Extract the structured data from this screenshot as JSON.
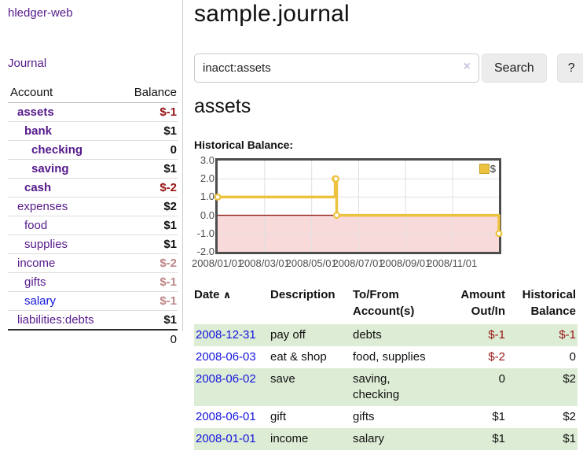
{
  "colors": {
    "link_visited": "#551a8b",
    "link_unvisited": "#1414dd",
    "negative_strong": "#971414",
    "negative_dim": "#bd8686",
    "row_green": "#ddecd5",
    "chart_line": "#edc240",
    "chart_negative_fill": "#f9dada",
    "chart_zero_line": "#8b1a1a"
  },
  "sidebar": {
    "app_title": "hledger-web",
    "journal_link": "Journal",
    "accounts_table": {
      "headers": {
        "account": "Account",
        "balance": "Balance"
      },
      "rows": [
        {
          "name": "assets",
          "indent": 1,
          "bold": true,
          "link_color": "purple",
          "balance": "$-1",
          "balance_class": "neg-strong"
        },
        {
          "name": "bank",
          "indent": 2,
          "bold": true,
          "link_color": "purple",
          "balance": "$1",
          "balance_class": "pos"
        },
        {
          "name": "checking",
          "indent": 3,
          "bold": true,
          "link_color": "purple",
          "balance": "0",
          "balance_class": "pos"
        },
        {
          "name": "saving",
          "indent": 3,
          "bold": true,
          "link_color": "purple",
          "balance": "$1",
          "balance_class": "pos"
        },
        {
          "name": "cash",
          "indent": 2,
          "bold": true,
          "link_color": "purple",
          "balance": "$-2",
          "balance_class": "neg-strong"
        },
        {
          "name": "expenses",
          "indent": 1,
          "bold": false,
          "link_color": "purple",
          "balance": "$2",
          "balance_class": "pos"
        },
        {
          "name": "food",
          "indent": 2,
          "bold": false,
          "link_color": "purple",
          "balance": "$1",
          "balance_class": "pos"
        },
        {
          "name": "supplies",
          "indent": 2,
          "bold": false,
          "link_color": "purple",
          "balance": "$1",
          "balance_class": "pos"
        },
        {
          "name": "income",
          "indent": 1,
          "bold": false,
          "link_color": "purple",
          "balance": "$-2",
          "balance_class": "neg-dim"
        },
        {
          "name": "gifts",
          "indent": 2,
          "bold": false,
          "link_color": "purple",
          "balance": "$-1",
          "balance_class": "neg-dim"
        },
        {
          "name": "salary",
          "indent": 2,
          "bold": false,
          "link_color": "blue",
          "balance": "$-1",
          "balance_class": "neg-dim"
        },
        {
          "name": "liabilities:debts",
          "indent": 1,
          "bold": false,
          "link_color": "purple",
          "balance": "$1",
          "balance_class": "pos"
        }
      ],
      "total": "0"
    }
  },
  "main": {
    "title": "sample.journal",
    "search": {
      "value": "inacct:assets",
      "clear_icon": "×",
      "search_button": "Search",
      "help_button": "?"
    },
    "account_heading": "assets",
    "chart_label": "Historical Balance:"
  },
  "chart_data": {
    "type": "line",
    "title": "Historical Balance",
    "step": true,
    "series": [
      {
        "name": "$",
        "points": [
          {
            "date": "2008-01-01",
            "value": 1
          },
          {
            "date": "2008-06-01",
            "value": 2
          },
          {
            "date": "2008-06-02",
            "value": 2
          },
          {
            "date": "2008-06-03",
            "value": 0
          },
          {
            "date": "2008-12-31",
            "value": -1
          }
        ]
      }
    ],
    "ylim": [
      -2,
      3
    ],
    "yticks": [
      "3.0",
      "2.0",
      "1.0",
      "0.0",
      "-1.0",
      "-2.0"
    ],
    "xticks": [
      {
        "label": "2008/01/01",
        "date": "2008-01-01"
      },
      {
        "label": "2008/03/01",
        "date": "2008-03-01"
      },
      {
        "label": "2008/05/01",
        "date": "2008-05-01"
      },
      {
        "label": "2008/07/01",
        "date": "2008-07-01"
      },
      {
        "label": "2008/09/01",
        "date": "2008-09-01"
      },
      {
        "label": "2008/11/01",
        "date": "2008-11-01"
      }
    ],
    "x_range": {
      "start": "2008-01-01",
      "end": "2008-12-31"
    },
    "legend": {
      "label": "$",
      "position": "top-right"
    },
    "grid": true,
    "negative_region": {
      "from": 0,
      "to": -2
    }
  },
  "register_table": {
    "headers": {
      "date": "Date",
      "sort_icon": "∧",
      "description": "Description",
      "accounts": "To/From Account(s)",
      "amount": "Amount Out/In",
      "balance": "Historical Balance"
    },
    "rows": [
      {
        "date": "2008-12-31",
        "description": "pay off",
        "accounts": "debts",
        "amount": "$-1",
        "amount_class": "neg-strong",
        "balance": "$-1",
        "balance_class": "neg-strong",
        "green": true
      },
      {
        "date": "2008-06-03",
        "description": "eat & shop",
        "accounts": "food, supplies",
        "amount": "$-2",
        "amount_class": "neg-strong",
        "balance": "0",
        "balance_class": "pos",
        "green": false
      },
      {
        "date": "2008-06-02",
        "description": "save",
        "accounts": "saving, checking",
        "amount": "0",
        "amount_class": "pos",
        "balance": "$2",
        "balance_class": "pos",
        "green": true
      },
      {
        "date": "2008-06-01",
        "description": "gift",
        "accounts": "gifts",
        "amount": "$1",
        "amount_class": "pos",
        "balance": "$2",
        "balance_class": "pos",
        "green": false
      },
      {
        "date": "2008-01-01",
        "description": "income",
        "accounts": "salary",
        "amount": "$1",
        "amount_class": "pos",
        "balance": "$1",
        "balance_class": "pos",
        "green": true
      }
    ]
  }
}
